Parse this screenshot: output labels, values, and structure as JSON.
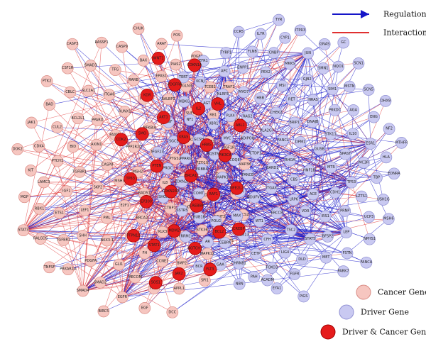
{
  "colors": {
    "cancer_fill": "#f6c6c0",
    "cancer_stroke": "#d98b84",
    "driver_fill": "#c9c9f1",
    "driver_stroke": "#8f8fd3",
    "both_fill": "#e51b1b",
    "both_stroke": "#a00000",
    "regulation_edge": "#1515c8",
    "interaction_edge": "#e03030"
  },
  "legend": {
    "regulation": "Regulation",
    "interaction": "Interaction",
    "cancer_gene": "Cancer Gene",
    "driver_gene": "Driver Gene",
    "driver_cancer_gene": "Driver & Cancer Gene"
  },
  "nodes": {
    "cancer": [
      "MSH2",
      "MSH3",
      "PPP2R2D",
      "BAD51",
      "CASP8",
      "MLH1",
      "E2F1",
      "PAXIP1",
      "IL8",
      "SKP2",
      "NFKBIA",
      "BRCA2",
      "AXIN1",
      "PTGS2",
      "PML",
      "RUNX1",
      "CTBP1",
      "TGFBR1",
      "TGFBR3",
      "FAS",
      "PPARD",
      "RXRA",
      "LEF1",
      "FIGF",
      "KLK3",
      "BID",
      "DAPK1",
      "NKX3-1",
      "ITGA6",
      "AKT3",
      "IGF1",
      "RALBP1",
      "FH",
      "BCL2L1",
      "FZD10",
      "SHH",
      "RARB",
      "HHIP",
      "PTCH1",
      "SUFU",
      "GLI1",
      "SLC2A1",
      "PLD1",
      "ETS1",
      "EPAS1",
      "CCNE1",
      "CUL2",
      "FOXO1",
      "PDGFA",
      "TFG",
      "STK36",
      "LAMC3",
      "EGLN3",
      "MECOM",
      "CBLC",
      "TCEB2",
      "TGFBR2",
      "BAX",
      "BMP2",
      "CDK4",
      "RB1",
      "SMAD2",
      "SMAD3",
      "DDIT3",
      "RBX1",
      "PIAS2",
      "TGFA",
      "BAD",
      "IGF1R",
      "PRKAR1A",
      "CASP9",
      "MAPK12",
      "KIT",
      "TCEB1",
      "EGFR",
      "CSF1R",
      "CYCS",
      "RALGDS",
      "ARAF",
      "APPL1",
      "JAK1",
      "CKS1B",
      "SMAD4",
      "RASSF1",
      "RASSF5",
      "MGP",
      "PDGFB",
      "EGF",
      "PTK2",
      "MAP3K",
      "TNFSF",
      "CHUK",
      "SPI1",
      "DOK2",
      "TRAF1",
      "BIRC5",
      "CASP3",
      "CYCS2",
      "STAT3",
      "FOS",
      "DCC"
    ],
    "driver": [
      "RHOA",
      "BARD1",
      "FANCL",
      "CBS",
      "CTDP1",
      "DPM1",
      "ITGAX",
      "PLA2G7",
      "HNF1B",
      "FANCE",
      "BRIP1",
      "LRP6",
      "ADIPOQ",
      "GUSB",
      "NDUFV1",
      "CHEK2",
      "ACE",
      "COQ8",
      "DNAJB",
      "ERCC8",
      "RAG2",
      "MTR",
      "ATM",
      "RET",
      "VDR",
      "MYC",
      "STK11",
      "WT1",
      "HBB",
      "CDH1",
      "MAPK1",
      "NRAS",
      "TSC2",
      "PLK4",
      "SPAST",
      "MAX",
      "MSI",
      "IRS1",
      "SQSTM1",
      "PRKDC",
      "CFH",
      "MYO7",
      "TP53",
      "CTNNB1",
      "GJB2",
      "STAT5",
      "UBR1",
      "IL10",
      "PEX13",
      "PEX2",
      "PRNP",
      "ERBB4",
      "SIM1",
      "LIG4",
      "NLRP3",
      "MC3R",
      "POLG",
      "MKKS",
      "BFSP2",
      "GCSH",
      "AGA",
      "CETP",
      "ENPP1",
      "LZTS1",
      "COMT",
      "SMN1",
      "DLD",
      "AGT",
      "ESR1",
      "CEBPA",
      "CNBP",
      "LEP",
      "PPARG",
      "MSTN",
      "FOXO3",
      "APC",
      "TBP",
      "BUB1B",
      "JUN",
      "MET",
      "NF1",
      "ENG",
      "CHRNB1",
      "FLNB",
      "UCP3",
      "CDKN2A",
      "NQO1",
      "FGFR",
      "KCNJ",
      "HLA",
      "AR",
      "CYP1",
      "FSTN",
      "SGCE",
      "SCN5",
      "PAH",
      "TYRP1",
      "USH1G",
      "SSTR5",
      "GNAS",
      "ACADM",
      "IKBKG",
      "NF2",
      "GAA",
      "IL7R",
      "NPHS1",
      "PROC",
      "SCN1",
      "EYA1",
      "EFR1",
      "EDNRA",
      "RRM1",
      "ITPR3",
      "PARK7",
      "NGF",
      "DHX9",
      "NBN",
      "CCR5",
      "MSH6",
      "SHOX",
      "GC",
      "PIGS",
      "TERT",
      "MTHFR",
      "BCR",
      "TYR",
      "FANCA",
      "FGF23"
    ],
    "both": [
      "BRCA1",
      "CDKN2A2",
      "KRAS",
      "CREBBP",
      "PTEN",
      "HRAS",
      "MDM2",
      "AKT1",
      "RAF1",
      "EP300",
      "IL2",
      "NOTCH1",
      "SMO",
      "PIK3CA",
      "STAT1",
      "PDGFRA",
      "BCL2",
      "TP63",
      "VHL",
      "JAK2",
      "KDR",
      "NFE2L2",
      "PTPN11",
      "CDKN1A",
      "FLT3",
      "CDK2",
      "ABL1",
      "SOS1",
      "WNT1",
      "CREBP"
    ]
  },
  "hubs": [
    "TP53",
    "STAT3",
    "STAT5",
    "NF1",
    "MYC",
    "APC",
    "CTNNB1",
    "JUN",
    "ESR1",
    "LEP",
    "TSC2",
    "ATM",
    "KRAS",
    "EP300",
    "CREBBP",
    "BRCA1",
    "MDM2",
    "PTEN",
    "AR",
    "EGFR",
    "SMAD4",
    "TERT"
  ]
}
